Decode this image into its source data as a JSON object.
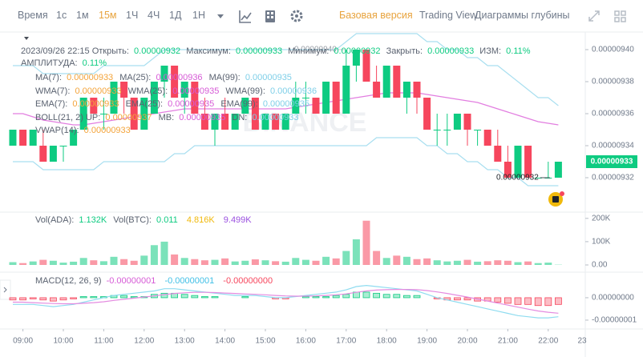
{
  "toolbar": {
    "time_label": "Время",
    "intervals": [
      "1с",
      "1м",
      "15м",
      "1Ч",
      "4Ч",
      "1Д",
      "1Н"
    ],
    "active_interval": 2,
    "views": [
      "Базовая версия",
      "Trading View",
      "Диаграммы глубины"
    ],
    "active_view": 0
  },
  "info": {
    "datetime": "2023/09/26 22:15",
    "fields": [
      {
        "label": "Открыть:",
        "value": "0.00000932"
      },
      {
        "label": "Максимум:",
        "value": "0.00000933"
      },
      {
        "label": "Минимум:",
        "value": "0.00000932"
      },
      {
        "label": "Закрыть:",
        "value": "0.00000933"
      },
      {
        "label": "ИЗМ:",
        "value": "0.11%"
      },
      {
        "label": "АМПЛИТУДА:",
        "value": "0.11%"
      }
    ]
  },
  "legends": {
    "main": [
      [
        {
          "label": "MA(7):",
          "value": "0.00000933",
          "color": "#f3a43b"
        },
        {
          "label": "MA(25):",
          "value": "0.00000936",
          "color": "#d65bd6"
        },
        {
          "label": "MA(99):",
          "value": "0.00000935",
          "color": "#7fcfe8"
        }
      ],
      [
        {
          "label": "WMA(7):",
          "value": "0.00000933",
          "color": "#f3a43b"
        },
        {
          "label": "WMA(25):",
          "value": "0.00000935",
          "color": "#d65bd6"
        },
        {
          "label": "WMA(99):",
          "value": "0.00000936",
          "color": "#7fcfe8"
        }
      ],
      [
        {
          "label": "EMA(7):",
          "value": "0.00000933",
          "color": "#f3a43b"
        },
        {
          "label": "EMA(25):",
          "value": "0.00000935",
          "color": "#d65bd6"
        },
        {
          "label": "EMA(99):",
          "value": "0.00000935",
          "color": "#7fcfe8"
        }
      ],
      [
        {
          "label": "BOLL(21, 2) UP:",
          "value": "0.00000937",
          "color": "#f3a43b"
        },
        {
          "label": "MB:",
          "value": "0.00000935",
          "color": "#d65bd6"
        },
        {
          "label": "DN:",
          "value": "0.00000933",
          "color": "#7fcfe8"
        }
      ],
      [
        {
          "label": "VWAP(14):",
          "value": "0.00000933",
          "color": "#f3a43b"
        }
      ]
    ],
    "volume": [
      [
        {
          "label": "Vol(ADA):",
          "value": "1.132K",
          "color": "#0ecb81"
        },
        {
          "label": "Vol(BTC):",
          "value": "0.011",
          "color": "#0ecb81"
        },
        {
          "value": "4.816K",
          "color": "#f0b90b"
        },
        {
          "value": "9.499K",
          "color": "#9b51e0"
        }
      ]
    ],
    "macd": [
      [
        {
          "label": "MACD(12, 26, 9)"
        },
        {
          "value": "-0.00000001",
          "color": "#d65bd6"
        },
        {
          "value": "-0.00000001",
          "color": "#3fbfe6"
        },
        {
          "value": "-0.00000000",
          "color": "#f6465d"
        }
      ]
    ]
  },
  "chart_data": {
    "type": "candlestick",
    "watermark": "BINANCE",
    "up_color": "#0ecb81",
    "down_color": "#f6465d",
    "boll_color": "#a9dff0",
    "ma25_color": "#e27ee0",
    "dif_color": "#8fdcf0",
    "dea_color": "#e48be0",
    "x": [
      null,
      "09:00",
      null,
      null,
      null,
      "10:00",
      null,
      null,
      null,
      "11:00",
      null,
      null,
      null,
      "12:00",
      null,
      null,
      null,
      "13:00",
      null,
      null,
      null,
      "14:00",
      null,
      null,
      null,
      "15:00",
      null,
      null,
      null,
      "16:00",
      null,
      null,
      null,
      "17:00",
      null,
      null,
      null,
      "18:00",
      null,
      null,
      null,
      "19:00",
      null,
      null,
      null,
      "20:00",
      null,
      null,
      null,
      "21:00",
      null,
      null,
      null,
      "22:00",
      null
    ],
    "x_edge_label": "23",
    "ohlc": [
      [
        9.34e-06,
        9.35e-06,
        9.34e-06,
        9.35e-06
      ],
      [
        9.35e-06,
        9.35e-06,
        9.34e-06,
        9.34e-06
      ],
      [
        9.34e-06,
        9.35e-06,
        9.34e-06,
        9.35e-06
      ],
      [
        9.34e-06,
        9.35e-06,
        9.33e-06,
        9.33e-06
      ],
      [
        9.33e-06,
        9.34e-06,
        9.33e-06,
        9.34e-06
      ],
      [
        9.34e-06,
        9.34e-06,
        9.33e-06,
        9.34e-06
      ],
      [
        9.34e-06,
        9.35e-06,
        9.34e-06,
        9.35e-06
      ],
      [
        9.35e-06,
        9.37e-06,
        9.35e-06,
        9.37e-06
      ],
      [
        9.37e-06,
        9.37e-06,
        9.36e-06,
        9.36e-06
      ],
      [
        9.36e-06,
        9.37e-06,
        9.35e-06,
        9.36e-06
      ],
      [
        9.36e-06,
        9.38e-06,
        9.36e-06,
        9.38e-06
      ],
      [
        9.38e-06,
        9.38e-06,
        9.36e-06,
        9.37e-06
      ],
      [
        9.37e-06,
        9.37e-06,
        9.35e-06,
        9.35e-06
      ],
      [
        9.35e-06,
        9.37e-06,
        9.35e-06,
        9.37e-06
      ],
      [
        9.36e-06,
        9.38e-06,
        9.36e-06,
        9.38e-06
      ],
      [
        9.38e-06,
        9.39e-06,
        9.37e-06,
        9.39e-06
      ],
      [
        9.39e-06,
        9.39e-06,
        9.37e-06,
        9.37e-06
      ],
      [
        9.37e-06,
        9.38e-06,
        9.36e-06,
        9.38e-06
      ],
      [
        9.38e-06,
        9.38e-06,
        9.36e-06,
        9.36e-06
      ],
      [
        9.36e-06,
        9.37e-06,
        9.35e-06,
        9.35e-06
      ],
      [
        9.35e-06,
        9.36e-06,
        9.34e-06,
        9.36e-06
      ],
      [
        9.36e-06,
        9.37e-06,
        9.35e-06,
        9.35e-06
      ],
      [
        9.35e-06,
        9.36e-06,
        9.35e-06,
        9.36e-06
      ],
      [
        9.36e-06,
        9.37e-06,
        9.36e-06,
        9.37e-06
      ],
      [
        9.37e-06,
        9.37e-06,
        9.35e-06,
        9.35e-06
      ],
      [
        9.35e-06,
        9.36e-06,
        9.35e-06,
        9.36e-06
      ],
      [
        9.36e-06,
        9.36e-06,
        9.35e-06,
        9.35e-06
      ],
      [
        9.35e-06,
        9.36e-06,
        9.35e-06,
        9.36e-06
      ],
      [
        9.36e-06,
        9.38e-06,
        9.36e-06,
        9.37e-06
      ],
      [
        9.37e-06,
        9.38e-06,
        9.36e-06,
        9.37e-06
      ],
      [
        9.37e-06,
        9.37e-06,
        9.36e-06,
        9.36e-06
      ],
      [
        9.36e-06,
        9.38e-06,
        9.36e-06,
        9.38e-06
      ],
      [
        9.38e-06,
        9.38e-06,
        9.36e-06,
        9.36e-06
      ],
      [
        9.36e-06,
        9.4e-06,
        9.36e-06,
        9.39e-06
      ],
      [
        9.39e-06,
        9.4e-06,
        9.38e-06,
        9.4e-06
      ],
      [
        9.4e-06,
        9.4e-06,
        9.38e-06,
        9.38e-06
      ],
      [
        9.38e-06,
        9.39e-06,
        9.37e-06,
        9.37e-06
      ],
      [
        9.37e-06,
        9.39e-06,
        9.37e-06,
        9.39e-06
      ],
      [
        9.39e-06,
        9.39e-06,
        9.37e-06,
        9.37e-06
      ],
      [
        9.37e-06,
        9.38e-06,
        9.36e-06,
        9.38e-06
      ],
      [
        9.38e-06,
        9.38e-06,
        9.36e-06,
        9.37e-06
      ],
      [
        9.37e-06,
        9.37e-06,
        9.35e-06,
        9.35e-06
      ],
      [
        9.35e-06,
        9.36e-06,
        9.34e-06,
        9.35e-06
      ],
      [
        9.35e-06,
        9.36e-06,
        9.34e-06,
        9.35e-06
      ],
      [
        9.35e-06,
        9.36e-06,
        9.35e-06,
        9.36e-06
      ],
      [
        9.36e-06,
        9.36e-06,
        9.34e-06,
        9.35e-06
      ],
      [
        9.35e-06,
        9.35e-06,
        9.34e-06,
        9.35e-06
      ],
      [
        9.35e-06,
        9.35e-06,
        9.34e-06,
        9.34e-06
      ],
      [
        9.34e-06,
        9.35e-06,
        9.33e-06,
        9.33e-06
      ],
      [
        9.33e-06,
        9.34e-06,
        9.32e-06,
        9.32e-06
      ],
      [
        9.32e-06,
        9.34e-06,
        9.32e-06,
        9.34e-06
      ],
      [
        9.34e-06,
        9.34e-06,
        9.32e-06,
        9.32e-06
      ],
      [
        9.32e-06,
        9.32e-06,
        9.32e-06,
        9.32e-06
      ],
      [
        9.32e-06,
        9.33e-06,
        9.32e-06,
        9.32e-06
      ],
      [
        9.32e-06,
        9.33e-06,
        9.32e-06,
        9.33e-06
      ]
    ],
    "boll_up": [
      9.39e-06,
      9.39e-06,
      9.39e-06,
      9.385e-06,
      9.385e-06,
      9.385e-06,
      9.385e-06,
      9.385e-06,
      9.385e-06,
      9.39e-06,
      9.39e-06,
      9.39e-06,
      9.39e-06,
      9.39e-06,
      9.395e-06,
      9.4e-06,
      9.4e-06,
      9.4e-06,
      9.4e-06,
      9.4e-06,
      9.4e-06,
      9.4e-06,
      9.4e-06,
      9.4e-06,
      9.4e-06,
      9.4e-06,
      9.4e-06,
      9.4e-06,
      9.4e-06,
      9.4e-06,
      9.4e-06,
      9.4e-06,
      9.4e-06,
      9.405e-06,
      9.41e-06,
      9.41e-06,
      9.41e-06,
      9.41e-06,
      9.41e-06,
      9.41e-06,
      9.41e-06,
      9.405e-06,
      9.405e-06,
      9.4e-06,
      9.4e-06,
      9.395e-06,
      9.395e-06,
      9.39e-06,
      9.39e-06,
      9.385e-06,
      9.38e-06,
      9.375e-06,
      9.37e-06,
      9.37e-06,
      9.365e-06
    ],
    "boll_dn": [
      9.33e-06,
      9.33e-06,
      9.33e-06,
      9.325e-06,
      9.325e-06,
      9.325e-06,
      9.325e-06,
      9.325e-06,
      9.325e-06,
      9.33e-06,
      9.33e-06,
      9.33e-06,
      9.33e-06,
      9.33e-06,
      9.33e-06,
      9.33e-06,
      9.335e-06,
      9.335e-06,
      9.34e-06,
      9.34e-06,
      9.34e-06,
      9.34e-06,
      9.34e-06,
      9.34e-06,
      9.34e-06,
      9.34e-06,
      9.34e-06,
      9.34e-06,
      9.34e-06,
      9.34e-06,
      9.34e-06,
      9.34e-06,
      9.34e-06,
      9.34e-06,
      9.34e-06,
      9.34e-06,
      9.345e-06,
      9.345e-06,
      9.345e-06,
      9.345e-06,
      9.345e-06,
      9.34e-06,
      9.34e-06,
      9.335e-06,
      9.335e-06,
      9.33e-06,
      9.33e-06,
      9.325e-06,
      9.325e-06,
      9.32e-06,
      9.32e-06,
      9.315e-06,
      9.315e-06,
      9.315e-06,
      9.315e-06
    ],
    "ma25": [
      9.36e-06,
      9.36e-06,
      9.358e-06,
      9.356e-06,
      9.355e-06,
      9.354e-06,
      9.353e-06,
      9.353e-06,
      9.354e-06,
      9.355e-06,
      9.356e-06,
      9.357e-06,
      9.358e-06,
      9.359e-06,
      9.36e-06,
      9.361e-06,
      9.362e-06,
      9.363e-06,
      9.363e-06,
      9.363e-06,
      9.363e-06,
      9.363e-06,
      9.363e-06,
      9.363e-06,
      9.363e-06,
      9.363e-06,
      9.363e-06,
      9.363e-06,
      9.364e-06,
      9.365e-06,
      9.366e-06,
      9.367e-06,
      9.368e-06,
      9.369e-06,
      9.37e-06,
      9.371e-06,
      9.372e-06,
      9.373e-06,
      9.373e-06,
      9.373e-06,
      9.373e-06,
      9.372e-06,
      9.371e-06,
      9.37e-06,
      9.369e-06,
      9.368e-06,
      9.367e-06,
      9.365e-06,
      9.363e-06,
      9.361e-06,
      9.359e-06,
      9.357e-06,
      9.355e-06,
      9.354e-06,
      9.353e-06
    ],
    "ylim": [
      9.3e-06,
      9.41e-06
    ],
    "yticks": [
      {
        "value": 9.4e-06,
        "label": "0.00000940"
      },
      {
        "value": 9.38e-06,
        "label": "0.00000938"
      },
      {
        "value": 9.36e-06,
        "label": "0.00000936"
      },
      {
        "value": 9.34e-06,
        "label": "0.00000934"
      },
      {
        "value": 9.32e-06,
        "label": "0.00000932"
      }
    ],
    "last_price": {
      "value": 9.33e-06,
      "label": "0.00000933"
    },
    "low_marker": {
      "value": 9.32e-06,
      "label": "0.00000932"
    },
    "high_marker": {
      "value": 9.4e-06,
      "label": "0.00000940"
    },
    "grid": false,
    "volume": [
      12000,
      8000,
      15000,
      22000,
      18000,
      10000,
      14000,
      30000,
      20000,
      16000,
      35000,
      25000,
      18000,
      40000,
      85000,
      100000,
      45000,
      30000,
      25000,
      20000,
      22000,
      28000,
      15000,
      18000,
      24000,
      20000,
      16000,
      14000,
      30000,
      22000,
      18000,
      35000,
      28000,
      60000,
      110000,
      190000,
      60000,
      30000,
      40000,
      35000,
      25000,
      28000,
      20000,
      15000,
      18000,
      22000,
      14000,
      16000,
      20000,
      18000,
      12000,
      15000,
      8000,
      10000,
      1132
    ],
    "volume_ylim": [
      0,
      220000
    ],
    "volume_yticks": [
      {
        "value": 200000,
        "label": "200K"
      },
      {
        "value": 100000,
        "label": "100K"
      },
      {
        "value": 0,
        "label": "0.00"
      }
    ],
    "macd_hist": [
      -1e-09,
      -1e-09,
      -5e-10,
      -1e-09,
      -1.5e-09,
      -1e-09,
      -5e-10,
      5e-10,
      5e-10,
      5e-10,
      1e-09,
      1e-09,
      5e-10,
      5e-10,
      1.5e-09,
      2e-09,
      2e-09,
      1.5e-09,
      1e-09,
      5e-10,
      5e-10,
      0,
      0,
      5e-10,
      0,
      0,
      -5e-10,
      -5e-10,
      0,
      5e-10,
      5e-10,
      5e-10,
      1e-09,
      1.5e-09,
      2.5e-09,
      2.5e-09,
      2e-09,
      1.5e-09,
      1.5e-09,
      1e-09,
      1e-09,
      0,
      -5e-10,
      -1e-09,
      -1e-09,
      -1e-09,
      -1.5e-09,
      -1.5e-09,
      -2e-09,
      -2.5e-09,
      -3e-09,
      -3e-09,
      -3.5e-09,
      -3.5e-09,
      -3e-09
    ],
    "macd_dif": [
      -3e-09,
      -3e-09,
      -3e-09,
      -3.5e-09,
      -4e-09,
      -3.5e-09,
      -3e-09,
      -2e-09,
      -1e-09,
      0,
      1e-09,
      1.5e-09,
      2e-09,
      2.5e-09,
      3e-09,
      4e-09,
      4e-09,
      3.5e-09,
      3e-09,
      2.5e-09,
      2e-09,
      1.5e-09,
      1e-09,
      1e-09,
      1e-09,
      5e-10,
      0,
      0,
      5e-10,
      1e-09,
      1.5e-09,
      2e-09,
      2.5e-09,
      3.5e-09,
      5e-09,
      5.5e-09,
      5e-09,
      4.5e-09,
      4e-09,
      3.5e-09,
      3e-09,
      1.5e-09,
      0,
      -1e-09,
      -2e-09,
      -3e-09,
      -4e-09,
      -5e-09,
      -6e-09,
      -7e-09,
      -8e-09,
      -8.5e-09,
      -9e-09,
      -9e-09,
      -8.5e-09
    ],
    "macd_dea": [
      -2e-09,
      -2e-09,
      -2.2e-09,
      -2.4e-09,
      -2.6e-09,
      -2.7e-09,
      -2.7e-09,
      -2.5e-09,
      -2.2e-09,
      -1.8e-09,
      -1.2e-09,
      -7e-10,
      -2e-10,
      3e-10,
      8e-10,
      1.4e-09,
      1.9e-09,
      2.2e-09,
      2.4e-09,
      2.4e-09,
      2.3e-09,
      2.1e-09,
      1.9e-09,
      1.7e-09,
      1.5e-09,
      1.3e-09,
      1e-09,
      8e-10,
      7e-10,
      7e-10,
      8e-10,
      1e-09,
      1.3e-09,
      1.7e-09,
      2.4e-09,
      3e-09,
      3.4e-09,
      3.6e-09,
      3.7e-09,
      3.7e-09,
      3.6e-09,
      3.2e-09,
      2.6e-09,
      1.9e-09,
      1.1e-09,
      3e-10,
      -6e-10,
      -1.5e-09,
      -2.4e-09,
      -3.3e-09,
      -4.2e-09,
      -5.1e-09,
      -5.9e-09,
      -6.5e-09,
      -6.9e-09
    ],
    "macd_ylim": [
      -1.36e-08,
      1.07e-08
    ],
    "macd_yticks": [
      {
        "value": 0,
        "label": "0.00000000"
      },
      {
        "value": -1e-08,
        "label": "-0.00000001"
      }
    ]
  }
}
